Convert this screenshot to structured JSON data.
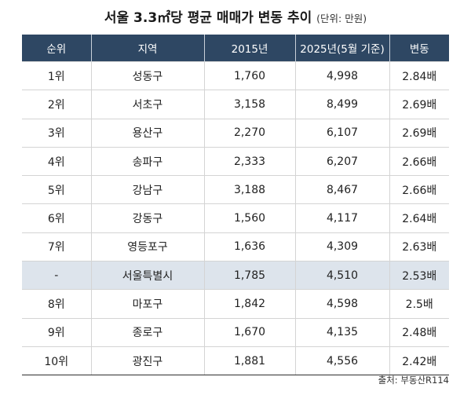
{
  "chart_data": {
    "type": "table",
    "title": "서울 3.3㎡당 평균 매매가 변동 추이",
    "unit_note": "(단위: 만원)",
    "columns": [
      "순위",
      "지역",
      "2015년",
      "2025년(5월 기준)",
      "변동"
    ],
    "rows": [
      {
        "rank": "1위",
        "region": "성동구",
        "y2015": "1,760",
        "y2025": "4,998",
        "change": "2.84배"
      },
      {
        "rank": "2위",
        "region": "서초구",
        "y2015": "3,158",
        "y2025": "8,499",
        "change": "2.69배"
      },
      {
        "rank": "3위",
        "region": "용산구",
        "y2015": "2,270",
        "y2025": "6,107",
        "change": "2.69배"
      },
      {
        "rank": "4위",
        "region": "송파구",
        "y2015": "2,333",
        "y2025": "6,207",
        "change": "2.66배"
      },
      {
        "rank": "5위",
        "region": "강남구",
        "y2015": "3,188",
        "y2025": "8,467",
        "change": "2.66배"
      },
      {
        "rank": "6위",
        "region": "강동구",
        "y2015": "1,560",
        "y2025": "4,117",
        "change": "2.64배"
      },
      {
        "rank": "7위",
        "region": "영등포구",
        "y2015": "1,636",
        "y2025": "4,309",
        "change": "2.63배"
      },
      {
        "rank": "-",
        "region": "서울특별시",
        "y2015": "1,785",
        "y2025": "4,510",
        "change": "2.53배",
        "highlight": true
      },
      {
        "rank": "8위",
        "region": "마포구",
        "y2015": "1,842",
        "y2025": "4,598",
        "change": "2.5배"
      },
      {
        "rank": "9위",
        "region": "종로구",
        "y2015": "1,670",
        "y2025": "4,135",
        "change": "2.48배"
      },
      {
        "rank": "10위",
        "region": "광진구",
        "y2015": "1,881",
        "y2025": "4,556",
        "change": "2.42배"
      }
    ],
    "source": "출처: 부동산R114"
  },
  "colors": {
    "header_bg": "#2e4763",
    "highlight_bg": "#dde4ec"
  }
}
